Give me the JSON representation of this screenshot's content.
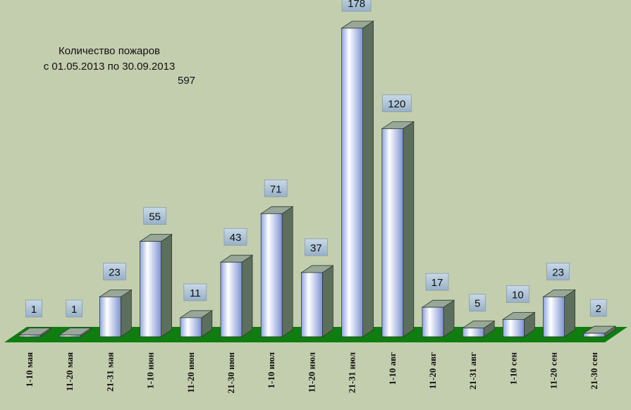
{
  "chart_data": {
    "type": "bar",
    "title": "Количество пожаров",
    "subtitle": "с 01.05.2013 по 30.09.2013",
    "total": "597",
    "categories": [
      "1-10  мая",
      "11-20 мая",
      "21-31 мая",
      "1-10  июн",
      "11-20 июн",
      "21-30 июн",
      "1-10  июл",
      "11-20 июл",
      "21-31 июл",
      "1-10  авг",
      "11-20  авг",
      "21-31  авг",
      "1-10  сен",
      "11-20 сен",
      "21-30 сен"
    ],
    "values": [
      1,
      1,
      23,
      55,
      11,
      43,
      71,
      37,
      178,
      120,
      17,
      5,
      10,
      23,
      2
    ],
    "ylim": [
      0,
      178
    ],
    "grid": false,
    "legend": "none",
    "colors": {
      "background": "#c3ceae",
      "floor": "#0f7d0f",
      "bar_front_light": "#ffffff",
      "bar_front_dark": "#8ea4e2",
      "bar_side": "#5c6e5c",
      "bar_top": "#98a898",
      "label_box": "#a9c1d5"
    }
  }
}
